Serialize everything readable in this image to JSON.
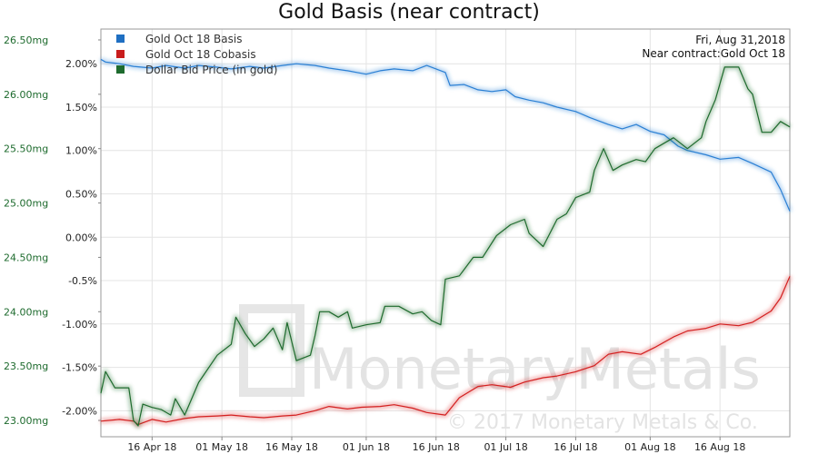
{
  "chart_data": {
    "type": "line",
    "title": "Gold Basis (near contract)",
    "x_range": [
      "2018-04-05",
      "2018-08-31"
    ],
    "x_tick_labels": [
      "16 Apr 18",
      "01 May 18",
      "16 May 18",
      "01 Jun 18",
      "16 Jun 18",
      "01 Jul 18",
      "16 Jul 18",
      "01 Aug 18",
      "16 Aug 18"
    ],
    "x_ticks": [
      "2018-04-16",
      "2018-05-01",
      "2018-05-16",
      "2018-06-01",
      "2018-06-16",
      "2018-07-01",
      "2018-07-16",
      "2018-08-01",
      "2018-08-16"
    ],
    "y_left": {
      "range": [
        22.85,
        26.6
      ],
      "ticks": [
        23.0,
        23.5,
        24.0,
        24.5,
        25.0,
        25.5,
        26.0,
        26.5
      ],
      "tick_labels": [
        "23.00mg",
        "23.50mg",
        "24.00mg",
        "24.50mg",
        "25.00mg",
        "25.50mg",
        "26.00mg",
        "26.50mg"
      ],
      "color": "#1e6b2e"
    },
    "y_right": {
      "range": [
        -2.3,
        2.4
      ],
      "ticks": [
        -2.0,
        -1.5,
        -1.0,
        -0.5,
        0.0,
        0.5,
        1.0,
        1.5,
        2.0
      ],
      "tick_labels": [
        "-2.00%",
        "-1.50%",
        "-1.00%",
        "-0.5%",
        "0.00%",
        "0.50%",
        "1.00%",
        "1.50%",
        "2.00%"
      ]
    },
    "grid": true,
    "legend_position": "top-left",
    "annotation": [
      "Fri, Aug 31,2018",
      "Near contract:Gold Oct 18"
    ],
    "series": [
      {
        "name": "Gold Oct 18 Basis",
        "axis": "right",
        "color": "#2a7fd4",
        "points": [
          [
            "2018-04-05",
            2.05
          ],
          [
            "2018-04-06",
            2.02
          ],
          [
            "2018-04-09",
            2.0
          ],
          [
            "2018-04-12",
            1.97
          ],
          [
            "2018-04-16",
            1.95
          ],
          [
            "2018-04-19",
            1.98
          ],
          [
            "2018-04-23",
            1.95
          ],
          [
            "2018-04-26",
            1.98
          ],
          [
            "2018-04-30",
            1.96
          ],
          [
            "2018-05-03",
            1.94
          ],
          [
            "2018-05-07",
            1.97
          ],
          [
            "2018-05-10",
            1.95
          ],
          [
            "2018-05-14",
            1.98
          ],
          [
            "2018-05-17",
            2.0
          ],
          [
            "2018-05-21",
            1.98
          ],
          [
            "2018-05-24",
            1.95
          ],
          [
            "2018-05-28",
            1.92
          ],
          [
            "2018-05-30",
            1.9
          ],
          [
            "2018-06-01",
            1.88
          ],
          [
            "2018-06-04",
            1.92
          ],
          [
            "2018-06-07",
            1.94
          ],
          [
            "2018-06-11",
            1.92
          ],
          [
            "2018-06-14",
            1.98
          ],
          [
            "2018-06-18",
            1.9
          ],
          [
            "2018-06-19",
            1.75
          ],
          [
            "2018-06-22",
            1.76
          ],
          [
            "2018-06-25",
            1.7
          ],
          [
            "2018-06-28",
            1.68
          ],
          [
            "2018-07-01",
            1.7
          ],
          [
            "2018-07-03",
            1.62
          ],
          [
            "2018-07-06",
            1.58
          ],
          [
            "2018-07-09",
            1.55
          ],
          [
            "2018-07-12",
            1.5
          ],
          [
            "2018-07-16",
            1.45
          ],
          [
            "2018-07-19",
            1.38
          ],
          [
            "2018-07-23",
            1.3
          ],
          [
            "2018-07-26",
            1.25
          ],
          [
            "2018-07-29",
            1.3
          ],
          [
            "2018-08-01",
            1.22
          ],
          [
            "2018-08-04",
            1.18
          ],
          [
            "2018-08-07",
            1.05
          ],
          [
            "2018-08-09",
            1.0
          ],
          [
            "2018-08-13",
            0.95
          ],
          [
            "2018-08-16",
            0.9
          ],
          [
            "2018-08-20",
            0.92
          ],
          [
            "2018-08-23",
            0.85
          ],
          [
            "2018-08-27",
            0.75
          ],
          [
            "2018-08-29",
            0.55
          ],
          [
            "2018-08-31",
            0.3
          ]
        ]
      },
      {
        "name": "Gold Oct 18 Cobasis",
        "axis": "right",
        "color": "#d42020",
        "points": [
          [
            "2018-04-05",
            -2.12
          ],
          [
            "2018-04-09",
            -2.1
          ],
          [
            "2018-04-12",
            -2.12
          ],
          [
            "2018-04-13",
            -2.16
          ],
          [
            "2018-04-16",
            -2.1
          ],
          [
            "2018-04-19",
            -2.13
          ],
          [
            "2018-04-23",
            -2.09
          ],
          [
            "2018-04-26",
            -2.07
          ],
          [
            "2018-04-30",
            -2.06
          ],
          [
            "2018-05-03",
            -2.05
          ],
          [
            "2018-05-07",
            -2.07
          ],
          [
            "2018-05-10",
            -2.08
          ],
          [
            "2018-05-14",
            -2.06
          ],
          [
            "2018-05-17",
            -2.05
          ],
          [
            "2018-05-21",
            -2.0
          ],
          [
            "2018-05-24",
            -1.95
          ],
          [
            "2018-05-28",
            -1.98
          ],
          [
            "2018-05-31",
            -1.96
          ],
          [
            "2018-06-04",
            -1.95
          ],
          [
            "2018-06-07",
            -1.93
          ],
          [
            "2018-06-11",
            -1.97
          ],
          [
            "2018-06-14",
            -2.02
          ],
          [
            "2018-06-18",
            -2.05
          ],
          [
            "2018-06-21",
            -1.85
          ],
          [
            "2018-06-25",
            -1.72
          ],
          [
            "2018-06-28",
            -1.7
          ],
          [
            "2018-07-02",
            -1.73
          ],
          [
            "2018-07-05",
            -1.67
          ],
          [
            "2018-07-09",
            -1.62
          ],
          [
            "2018-07-12",
            -1.6
          ],
          [
            "2018-07-16",
            -1.55
          ],
          [
            "2018-07-20",
            -1.48
          ],
          [
            "2018-07-23",
            -1.35
          ],
          [
            "2018-07-26",
            -1.32
          ],
          [
            "2018-07-30",
            -1.35
          ],
          [
            "2018-08-02",
            -1.27
          ],
          [
            "2018-08-06",
            -1.15
          ],
          [
            "2018-08-09",
            -1.08
          ],
          [
            "2018-08-13",
            -1.05
          ],
          [
            "2018-08-16",
            -1.0
          ],
          [
            "2018-08-20",
            -1.02
          ],
          [
            "2018-08-23",
            -0.98
          ],
          [
            "2018-08-27",
            -0.85
          ],
          [
            "2018-08-29",
            -0.7
          ],
          [
            "2018-08-31",
            -0.45
          ]
        ]
      },
      {
        "name": "Dollar Bid Price (in gold)",
        "axis": "left",
        "color": "#1e6b2e",
        "points": [
          [
            "2018-04-05",
            23.25
          ],
          [
            "2018-04-06",
            23.45
          ],
          [
            "2018-04-08",
            23.3
          ],
          [
            "2018-04-11",
            23.3
          ],
          [
            "2018-04-12",
            23.0
          ],
          [
            "2018-04-13",
            22.95
          ],
          [
            "2018-04-14",
            23.15
          ],
          [
            "2018-04-16",
            23.12
          ],
          [
            "2018-04-18",
            23.1
          ],
          [
            "2018-04-20",
            23.05
          ],
          [
            "2018-04-21",
            23.2
          ],
          [
            "2018-04-23",
            23.05
          ],
          [
            "2018-04-26",
            23.35
          ],
          [
            "2018-04-30",
            23.6
          ],
          [
            "2018-05-03",
            23.7
          ],
          [
            "2018-05-04",
            23.95
          ],
          [
            "2018-05-06",
            23.8
          ],
          [
            "2018-05-08",
            23.68
          ],
          [
            "2018-05-10",
            23.75
          ],
          [
            "2018-05-12",
            23.85
          ],
          [
            "2018-05-14",
            23.65
          ],
          [
            "2018-05-15",
            23.9
          ],
          [
            "2018-05-17",
            23.55
          ],
          [
            "2018-05-20",
            23.6
          ],
          [
            "2018-05-21",
            23.78
          ],
          [
            "2018-05-22",
            24.0
          ],
          [
            "2018-05-24",
            24.0
          ],
          [
            "2018-05-26",
            23.95
          ],
          [
            "2018-05-28",
            24.0
          ],
          [
            "2018-05-29",
            23.85
          ],
          [
            "2018-06-01",
            23.88
          ],
          [
            "2018-06-04",
            23.9
          ],
          [
            "2018-06-05",
            24.05
          ],
          [
            "2018-06-08",
            24.05
          ],
          [
            "2018-06-11",
            23.98
          ],
          [
            "2018-06-13",
            24.0
          ],
          [
            "2018-06-15",
            23.92
          ],
          [
            "2018-06-17",
            23.88
          ],
          [
            "2018-06-18",
            24.3
          ],
          [
            "2018-06-21",
            24.33
          ],
          [
            "2018-06-24",
            24.5
          ],
          [
            "2018-06-26",
            24.5
          ],
          [
            "2018-06-29",
            24.7
          ],
          [
            "2018-07-02",
            24.8
          ],
          [
            "2018-07-05",
            24.85
          ],
          [
            "2018-07-06",
            24.72
          ],
          [
            "2018-07-09",
            24.6
          ],
          [
            "2018-07-12",
            24.85
          ],
          [
            "2018-07-14",
            24.9
          ],
          [
            "2018-07-16",
            25.05
          ],
          [
            "2018-07-19",
            25.1
          ],
          [
            "2018-07-20",
            25.3
          ],
          [
            "2018-07-22",
            25.5
          ],
          [
            "2018-07-24",
            25.3
          ],
          [
            "2018-07-26",
            25.35
          ],
          [
            "2018-07-29",
            25.4
          ],
          [
            "2018-07-31",
            25.38
          ],
          [
            "2018-08-02",
            25.5
          ],
          [
            "2018-08-04",
            25.55
          ],
          [
            "2018-08-06",
            25.6
          ],
          [
            "2018-08-09",
            25.5
          ],
          [
            "2018-08-12",
            25.6
          ],
          [
            "2018-08-13",
            25.75
          ],
          [
            "2018-08-15",
            25.95
          ],
          [
            "2018-08-17",
            26.25
          ],
          [
            "2018-08-20",
            26.25
          ],
          [
            "2018-08-22",
            26.05
          ],
          [
            "2018-08-23",
            26.0
          ],
          [
            "2018-08-25",
            25.65
          ],
          [
            "2018-08-27",
            25.65
          ],
          [
            "2018-08-29",
            25.75
          ],
          [
            "2018-08-31",
            25.7
          ]
        ]
      }
    ]
  },
  "watermark": {
    "logo_text": "MonetaryMetals",
    "copyright": "© 2017 Monetary Metals & Co."
  }
}
